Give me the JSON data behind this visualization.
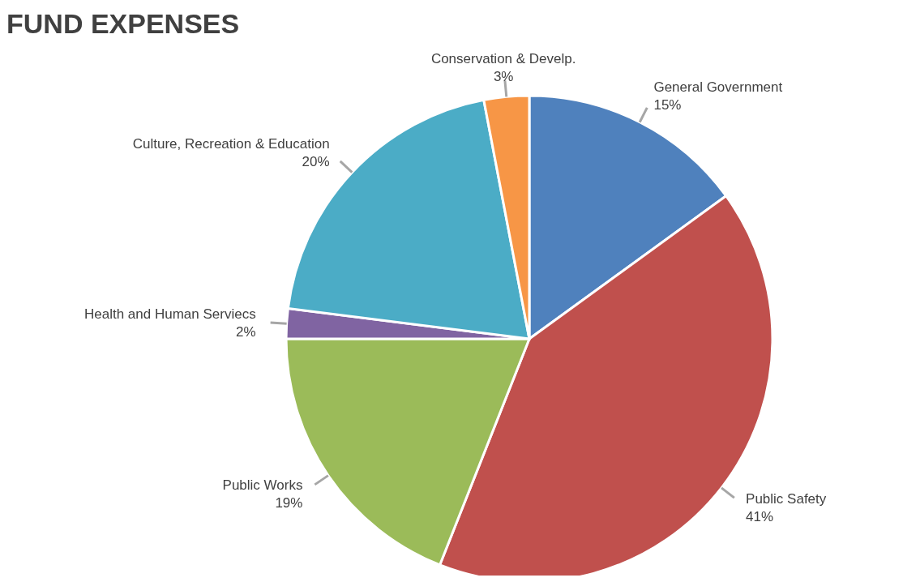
{
  "chart_data": {
    "type": "pie",
    "title": "FUND EXPENSES",
    "categories": [
      "General Government",
      "Public Safety",
      "Public Works",
      "Health and Human Serviecs",
      "Culture, Recreation & Education",
      "Conservation & Develp."
    ],
    "values": [
      15,
      41,
      19,
      2,
      20,
      3
    ],
    "value_labels": [
      "15%",
      "41%",
      "19%",
      "2%",
      "20%",
      "3%"
    ],
    "colors": [
      "#4f81bd",
      "#c0504d",
      "#9bbb59",
      "#8064a2",
      "#4bacc6",
      "#f79646"
    ],
    "legend": false
  }
}
